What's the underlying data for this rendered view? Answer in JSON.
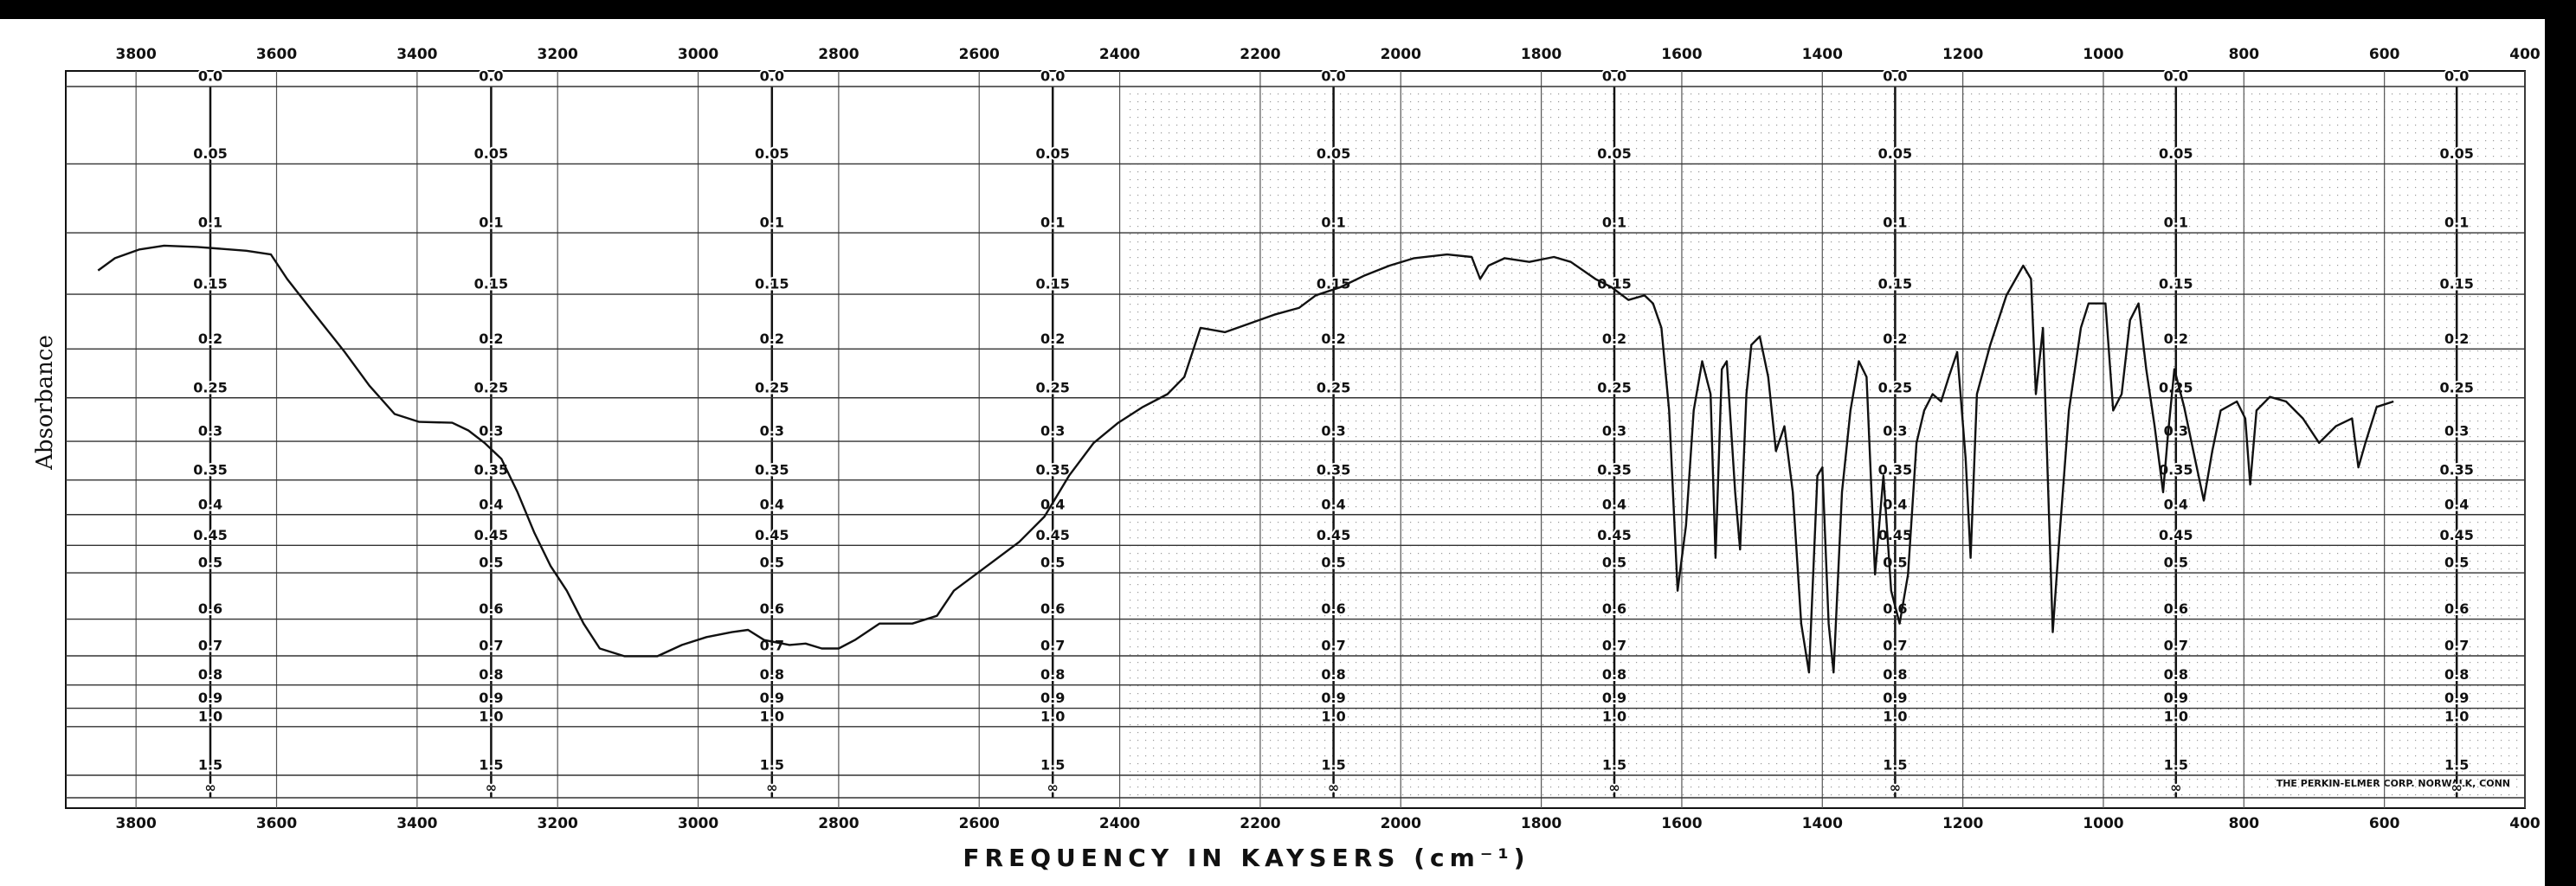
{
  "chart_data": {
    "type": "line",
    "x_label": "FREQUENCY IN KAYSERS (cm⁻¹)",
    "y_label": "Absorbance",
    "note": "THE PERKIN-ELMER CORP. NORWALK, CONN",
    "color": "#111111",
    "grid": true,
    "yscale": "absorbance",
    "xlim": [
      3900,
      400
    ],
    "xticks": [
      3800,
      3600,
      3400,
      3200,
      3000,
      2800,
      2600,
      2400,
      2200,
      2000,
      1800,
      1600,
      1400,
      1200,
      1000,
      800,
      600,
      400
    ],
    "ylim": [
      0,
      null
    ],
    "yticks": [
      {
        "value": 0,
        "label": "0.0"
      },
      0.05,
      0.1,
      0.15,
      0.2,
      0.25,
      0.3,
      0.35,
      0.4,
      0.45,
      0.5,
      0.6,
      0.7,
      0.8,
      0.9,
      {
        "value": 1,
        "label": "1.0"
      },
      1.5,
      {
        "value": null,
        "label": "∞"
      }
    ],
    "x": [
      3854,
      3830,
      3795,
      3760,
      3713,
      3643,
      3608,
      3585,
      3549,
      3503,
      3468,
      3432,
      3397,
      3350,
      3327,
      3304,
      3280,
      3257,
      3233,
      3210,
      3187,
      3163,
      3140,
      3105,
      3058,
      3023,
      2988,
      2952,
      2929,
      2906,
      2870,
      2847,
      2824,
      2800,
      2777,
      2742,
      2695,
      2660,
      2636,
      2589,
      2543,
      2507,
      2472,
      2437,
      2402,
      2367,
      2332,
      2308,
      2285,
      2250,
      2215,
      2180,
      2145,
      2121,
      2086,
      2051,
      2016,
      1981,
      1934,
      1899,
      1887,
      1875,
      1852,
      1817,
      1782,
      1758,
      1723,
      1700,
      1676,
      1653,
      1641,
      1629,
      1618,
      1606,
      1594,
      1583,
      1571,
      1559,
      1552,
      1543,
      1536,
      1524,
      1517,
      1508,
      1501,
      1489,
      1477,
      1466,
      1454,
      1442,
      1430,
      1419,
      1407,
      1400,
      1391,
      1384,
      1372,
      1360,
      1348,
      1337,
      1325,
      1313,
      1302,
      1290,
      1278,
      1266,
      1255,
      1243,
      1231,
      1220,
      1208,
      1196,
      1189,
      1180,
      1161,
      1138,
      1114,
      1103,
      1096,
      1086,
      1072,
      1063,
      1049,
      1032,
      1021,
      997,
      986,
      974,
      962,
      950,
      939,
      927,
      915,
      908,
      899,
      885,
      872,
      857,
      845,
      833,
      810,
      798,
      791,
      782,
      763,
      740,
      716,
      693,
      669,
      646,
      637,
      627,
      611,
      587
    ],
    "values": [
      0.13,
      0.12,
      0.113,
      0.11,
      0.111,
      0.114,
      0.117,
      0.137,
      0.165,
      0.203,
      0.237,
      0.268,
      0.277,
      0.278,
      0.287,
      0.302,
      0.322,
      0.367,
      0.429,
      0.487,
      0.536,
      0.611,
      0.678,
      0.701,
      0.701,
      0.668,
      0.646,
      0.633,
      0.627,
      0.654,
      0.668,
      0.664,
      0.678,
      0.678,
      0.654,
      0.611,
      0.611,
      0.592,
      0.536,
      0.487,
      0.444,
      0.403,
      0.344,
      0.302,
      0.278,
      0.26,
      0.246,
      0.228,
      0.18,
      0.184,
      0.176,
      0.168,
      0.162,
      0.151,
      0.144,
      0.134,
      0.126,
      0.12,
      0.117,
      0.119,
      0.137,
      0.126,
      0.12,
      0.123,
      0.119,
      0.123,
      0.137,
      0.144,
      0.155,
      0.151,
      0.158,
      0.18,
      0.264,
      0.536,
      0.417,
      0.264,
      0.212,
      0.246,
      0.472,
      0.22,
      0.212,
      0.367,
      0.457,
      0.246,
      0.196,
      0.188,
      0.228,
      0.312,
      0.282,
      0.367,
      0.611,
      0.754,
      0.344,
      0.333,
      0.611,
      0.754,
      0.367,
      0.264,
      0.212,
      0.228,
      0.503,
      0.344,
      0.536,
      0.611,
      0.503,
      0.302,
      0.264,
      0.246,
      0.254,
      0.228,
      0.203,
      0.322,
      0.472,
      0.246,
      0.196,
      0.151,
      0.126,
      0.137,
      0.246,
      0.18,
      0.633,
      0.444,
      0.264,
      0.18,
      0.158,
      0.158,
      0.264,
      0.246,
      0.173,
      0.158,
      0.22,
      0.282,
      0.367,
      0.292,
      0.22,
      0.26,
      0.312,
      0.379,
      0.312,
      0.264,
      0.254,
      0.273,
      0.356,
      0.264,
      0.249,
      0.254,
      0.273,
      0.302,
      0.282,
      0.273,
      0.333,
      0.302,
      0.26,
      0.254
    ]
  }
}
